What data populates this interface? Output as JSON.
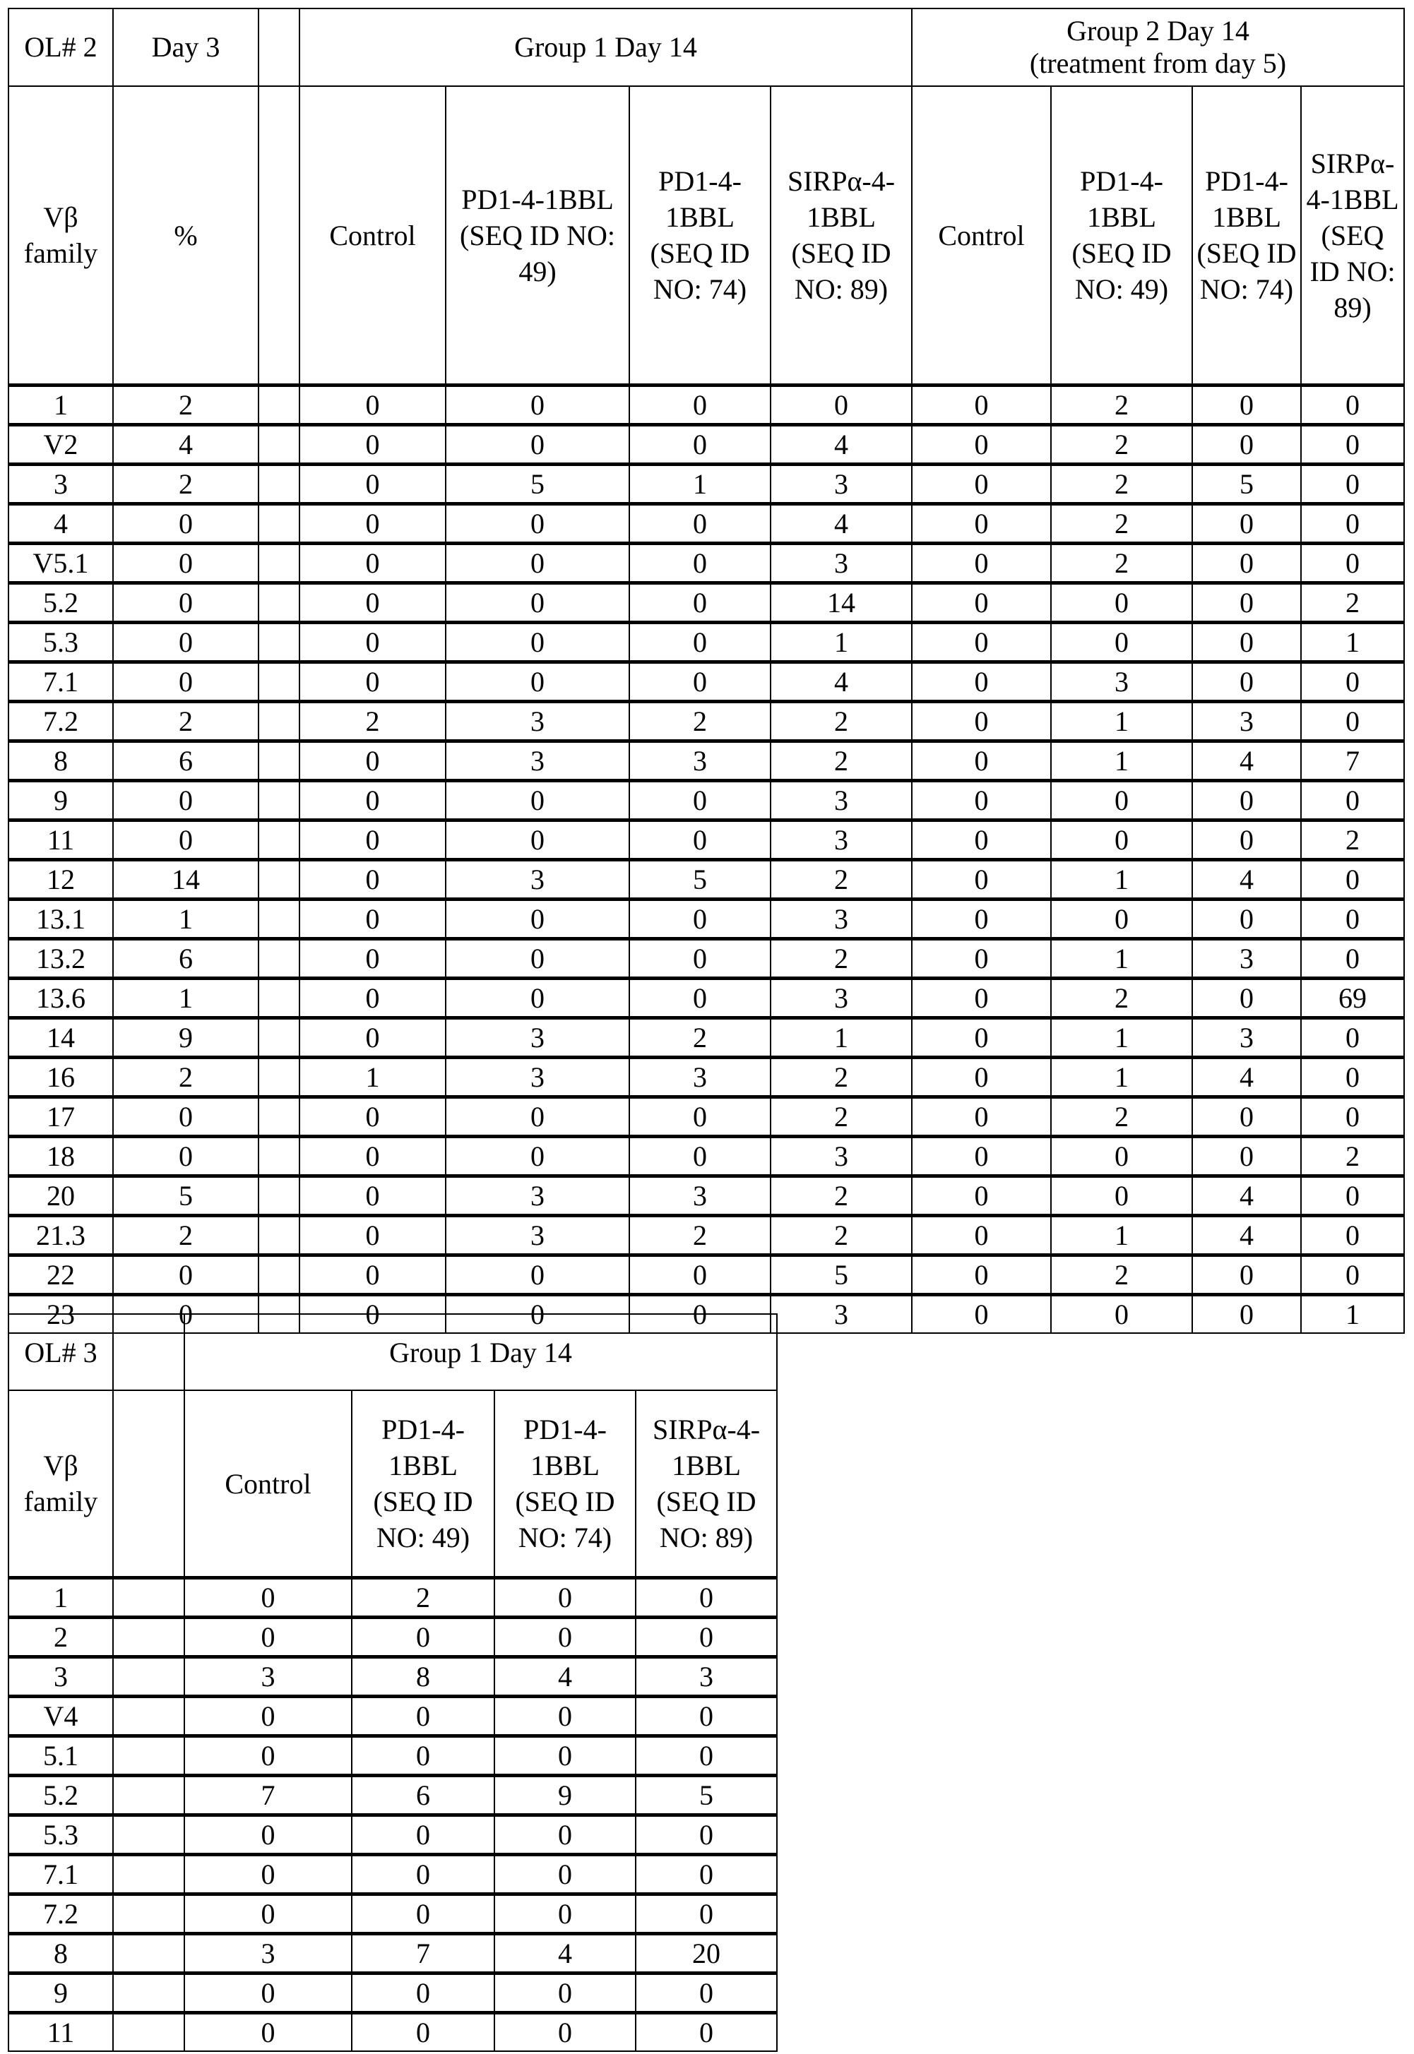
{
  "table1": {
    "header_top": [
      "OL# 2",
      "Day 3",
      "",
      "Group 1 Day 14",
      "Group 2 Day 14\n(treatment from day 5)"
    ],
    "header_sub": [
      "Vβ family",
      "%",
      "",
      "Control",
      "PD1-4-1BBL (SEQ ID NO: 49)",
      "PD1-4-1BBL (SEQ ID NO: 74)",
      "SIRPα-4-1BBL (SEQ ID NO: 89)",
      "Control",
      "PD1-4-1BBL (SEQ ID NO: 49)",
      "PD1-4-1BBL (SEQ ID NO: 74)",
      "SIRPα-4-1BBL (SEQ ID NO: 89)"
    ],
    "rows": [
      [
        "1",
        "2",
        "",
        "0",
        "0",
        "0",
        "0",
        "0",
        "2",
        "0",
        "0"
      ],
      [
        "V2",
        "4",
        "",
        "0",
        "0",
        "0",
        "4",
        "0",
        "2",
        "0",
        "0"
      ],
      [
        "3",
        "2",
        "",
        "0",
        "5",
        "1",
        "3",
        "0",
        "2",
        "5",
        "0"
      ],
      [
        "4",
        "0",
        "",
        "0",
        "0",
        "0",
        "4",
        "0",
        "2",
        "0",
        "0"
      ],
      [
        "V5.1",
        "0",
        "",
        "0",
        "0",
        "0",
        "3",
        "0",
        "2",
        "0",
        "0"
      ],
      [
        "5.2",
        "0",
        "",
        "0",
        "0",
        "0",
        "14",
        "0",
        "0",
        "0",
        "2"
      ],
      [
        "5.3",
        "0",
        "",
        "0",
        "0",
        "0",
        "1",
        "0",
        "0",
        "0",
        "1"
      ],
      [
        "7.1",
        "0",
        "",
        "0",
        "0",
        "0",
        "4",
        "0",
        "3",
        "0",
        "0"
      ],
      [
        "7.2",
        "2",
        "",
        "2",
        "3",
        "2",
        "2",
        "0",
        "1",
        "3",
        "0"
      ],
      [
        "8",
        "6",
        "",
        "0",
        "3",
        "3",
        "2",
        "0",
        "1",
        "4",
        "7"
      ],
      [
        "9",
        "0",
        "",
        "0",
        "0",
        "0",
        "3",
        "0",
        "0",
        "0",
        "0"
      ],
      [
        "11",
        "0",
        "",
        "0",
        "0",
        "0",
        "3",
        "0",
        "0",
        "0",
        "2"
      ],
      [
        "12",
        "14",
        "",
        "0",
        "3",
        "5",
        "2",
        "0",
        "1",
        "4",
        "0"
      ],
      [
        "13.1",
        "1",
        "",
        "0",
        "0",
        "0",
        "3",
        "0",
        "0",
        "0",
        "0"
      ],
      [
        "13.2",
        "6",
        "",
        "0",
        "0",
        "0",
        "2",
        "0",
        "1",
        "3",
        "0"
      ],
      [
        "13.6",
        "1",
        "",
        "0",
        "0",
        "0",
        "3",
        "0",
        "2",
        "0",
        "69"
      ],
      [
        "14",
        "9",
        "",
        "0",
        "3",
        "2",
        "1",
        "0",
        "1",
        "3",
        "0"
      ],
      [
        "16",
        "2",
        "",
        "1",
        "3",
        "3",
        "2",
        "0",
        "1",
        "4",
        "0"
      ],
      [
        "17",
        "0",
        "",
        "0",
        "0",
        "0",
        "2",
        "0",
        "2",
        "0",
        "0"
      ],
      [
        "18",
        "0",
        "",
        "0",
        "0",
        "0",
        "3",
        "0",
        "0",
        "0",
        "2"
      ],
      [
        "20",
        "5",
        "",
        "0",
        "3",
        "3",
        "2",
        "0",
        "0",
        "4",
        "0"
      ],
      [
        "21.3",
        "2",
        "",
        "0",
        "3",
        "2",
        "2",
        "0",
        "1",
        "4",
        "0"
      ],
      [
        "22",
        "0",
        "",
        "0",
        "0",
        "0",
        "5",
        "0",
        "2",
        "0",
        "0"
      ],
      [
        "23",
        "0",
        "",
        "0",
        "0",
        "0",
        "3",
        "0",
        "0",
        "0",
        "1"
      ]
    ]
  },
  "table2": {
    "header_top": [
      "OL# 3",
      "",
      "Group 1 Day 14"
    ],
    "header_sub": [
      "Vβ family",
      "",
      "Control",
      "PD1-4-1BBL (SEQ ID NO: 49)",
      "PD1-4-1BBL (SEQ ID NO: 74)",
      "SIRPα-4-1BBL (SEQ ID NO: 89)"
    ],
    "rows": [
      [
        "1",
        "",
        "0",
        "2",
        "0",
        "0"
      ],
      [
        "2",
        "",
        "0",
        "0",
        "0",
        "0"
      ],
      [
        "3",
        "",
        "3",
        "8",
        "4",
        "3"
      ],
      [
        "V4",
        "",
        "0",
        "0",
        "0",
        "0"
      ],
      [
        "5.1",
        "",
        "0",
        "0",
        "0",
        "0"
      ],
      [
        "5.2",
        "",
        "7",
        "6",
        "9",
        "5"
      ],
      [
        "5.3",
        "",
        "0",
        "0",
        "0",
        "0"
      ],
      [
        "7.1",
        "",
        "0",
        "0",
        "0",
        "0"
      ],
      [
        "7.2",
        "",
        "0",
        "0",
        "0",
        "0"
      ],
      [
        "8",
        "",
        "3",
        "7",
        "4",
        "20"
      ],
      [
        "9",
        "",
        "0",
        "0",
        "0",
        "0"
      ],
      [
        "11",
        "",
        "0",
        "0",
        "0",
        "0"
      ]
    ]
  }
}
